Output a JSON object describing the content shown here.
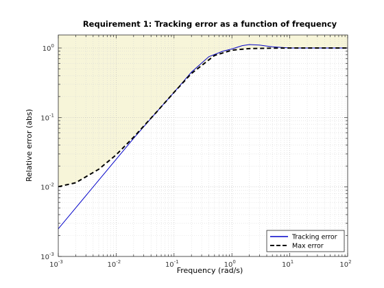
{
  "chart_data": {
    "type": "line",
    "title": "Requirement 1: Tracking error as a function of frequency",
    "xlabel": "Frequency (rad/s)",
    "ylabel": "Relative error (abs)",
    "xscale": "log",
    "yscale": "log",
    "xlim": [
      0.001,
      100
    ],
    "ylim": [
      0.001,
      1.5
    ],
    "grid": true,
    "legend_position": "bottom-right",
    "x_tick_labels": [
      {
        "base": "10",
        "exp": "-3"
      },
      {
        "base": "10",
        "exp": "-2"
      },
      {
        "base": "10",
        "exp": "-1"
      },
      {
        "base": "10",
        "exp": "0"
      },
      {
        "base": "10",
        "exp": "1"
      },
      {
        "base": "10",
        "exp": "2"
      }
    ],
    "y_tick_labels": [
      {
        "base": "10",
        "exp": "-3"
      },
      {
        "base": "10",
        "exp": "-2"
      },
      {
        "base": "10",
        "exp": "-1"
      },
      {
        "base": "10",
        "exp": "0"
      }
    ],
    "shaded_region": {
      "description": "violation region above max error bound",
      "color": "#f7f5d9"
    },
    "series": [
      {
        "name": "Tracking error",
        "style": "solid",
        "color": "#0000c8",
        "x": [
          0.001,
          0.002,
          0.005,
          0.01,
          0.02,
          0.05,
          0.1,
          0.2,
          0.4,
          0.7,
          1.0,
          1.5,
          2.0,
          3.0,
          5.0,
          10.0,
          100.0
        ],
        "y": [
          0.0025,
          0.005,
          0.0125,
          0.025,
          0.05,
          0.12,
          0.23,
          0.45,
          0.75,
          0.9,
          0.97,
          1.08,
          1.12,
          1.1,
          1.04,
          1.0,
          1.0
        ]
      },
      {
        "name": "Max error",
        "style": "dashed",
        "color": "#000000",
        "x": [
          0.001,
          0.002,
          0.005,
          0.01,
          0.02,
          0.05,
          0.1,
          0.2,
          0.5,
          1.0,
          2.0,
          5.0,
          10.0,
          100.0
        ],
        "y": [
          0.0101,
          0.0115,
          0.018,
          0.029,
          0.052,
          0.12,
          0.23,
          0.43,
          0.78,
          0.93,
          0.98,
          0.995,
          1.0,
          1.0
        ]
      }
    ]
  }
}
